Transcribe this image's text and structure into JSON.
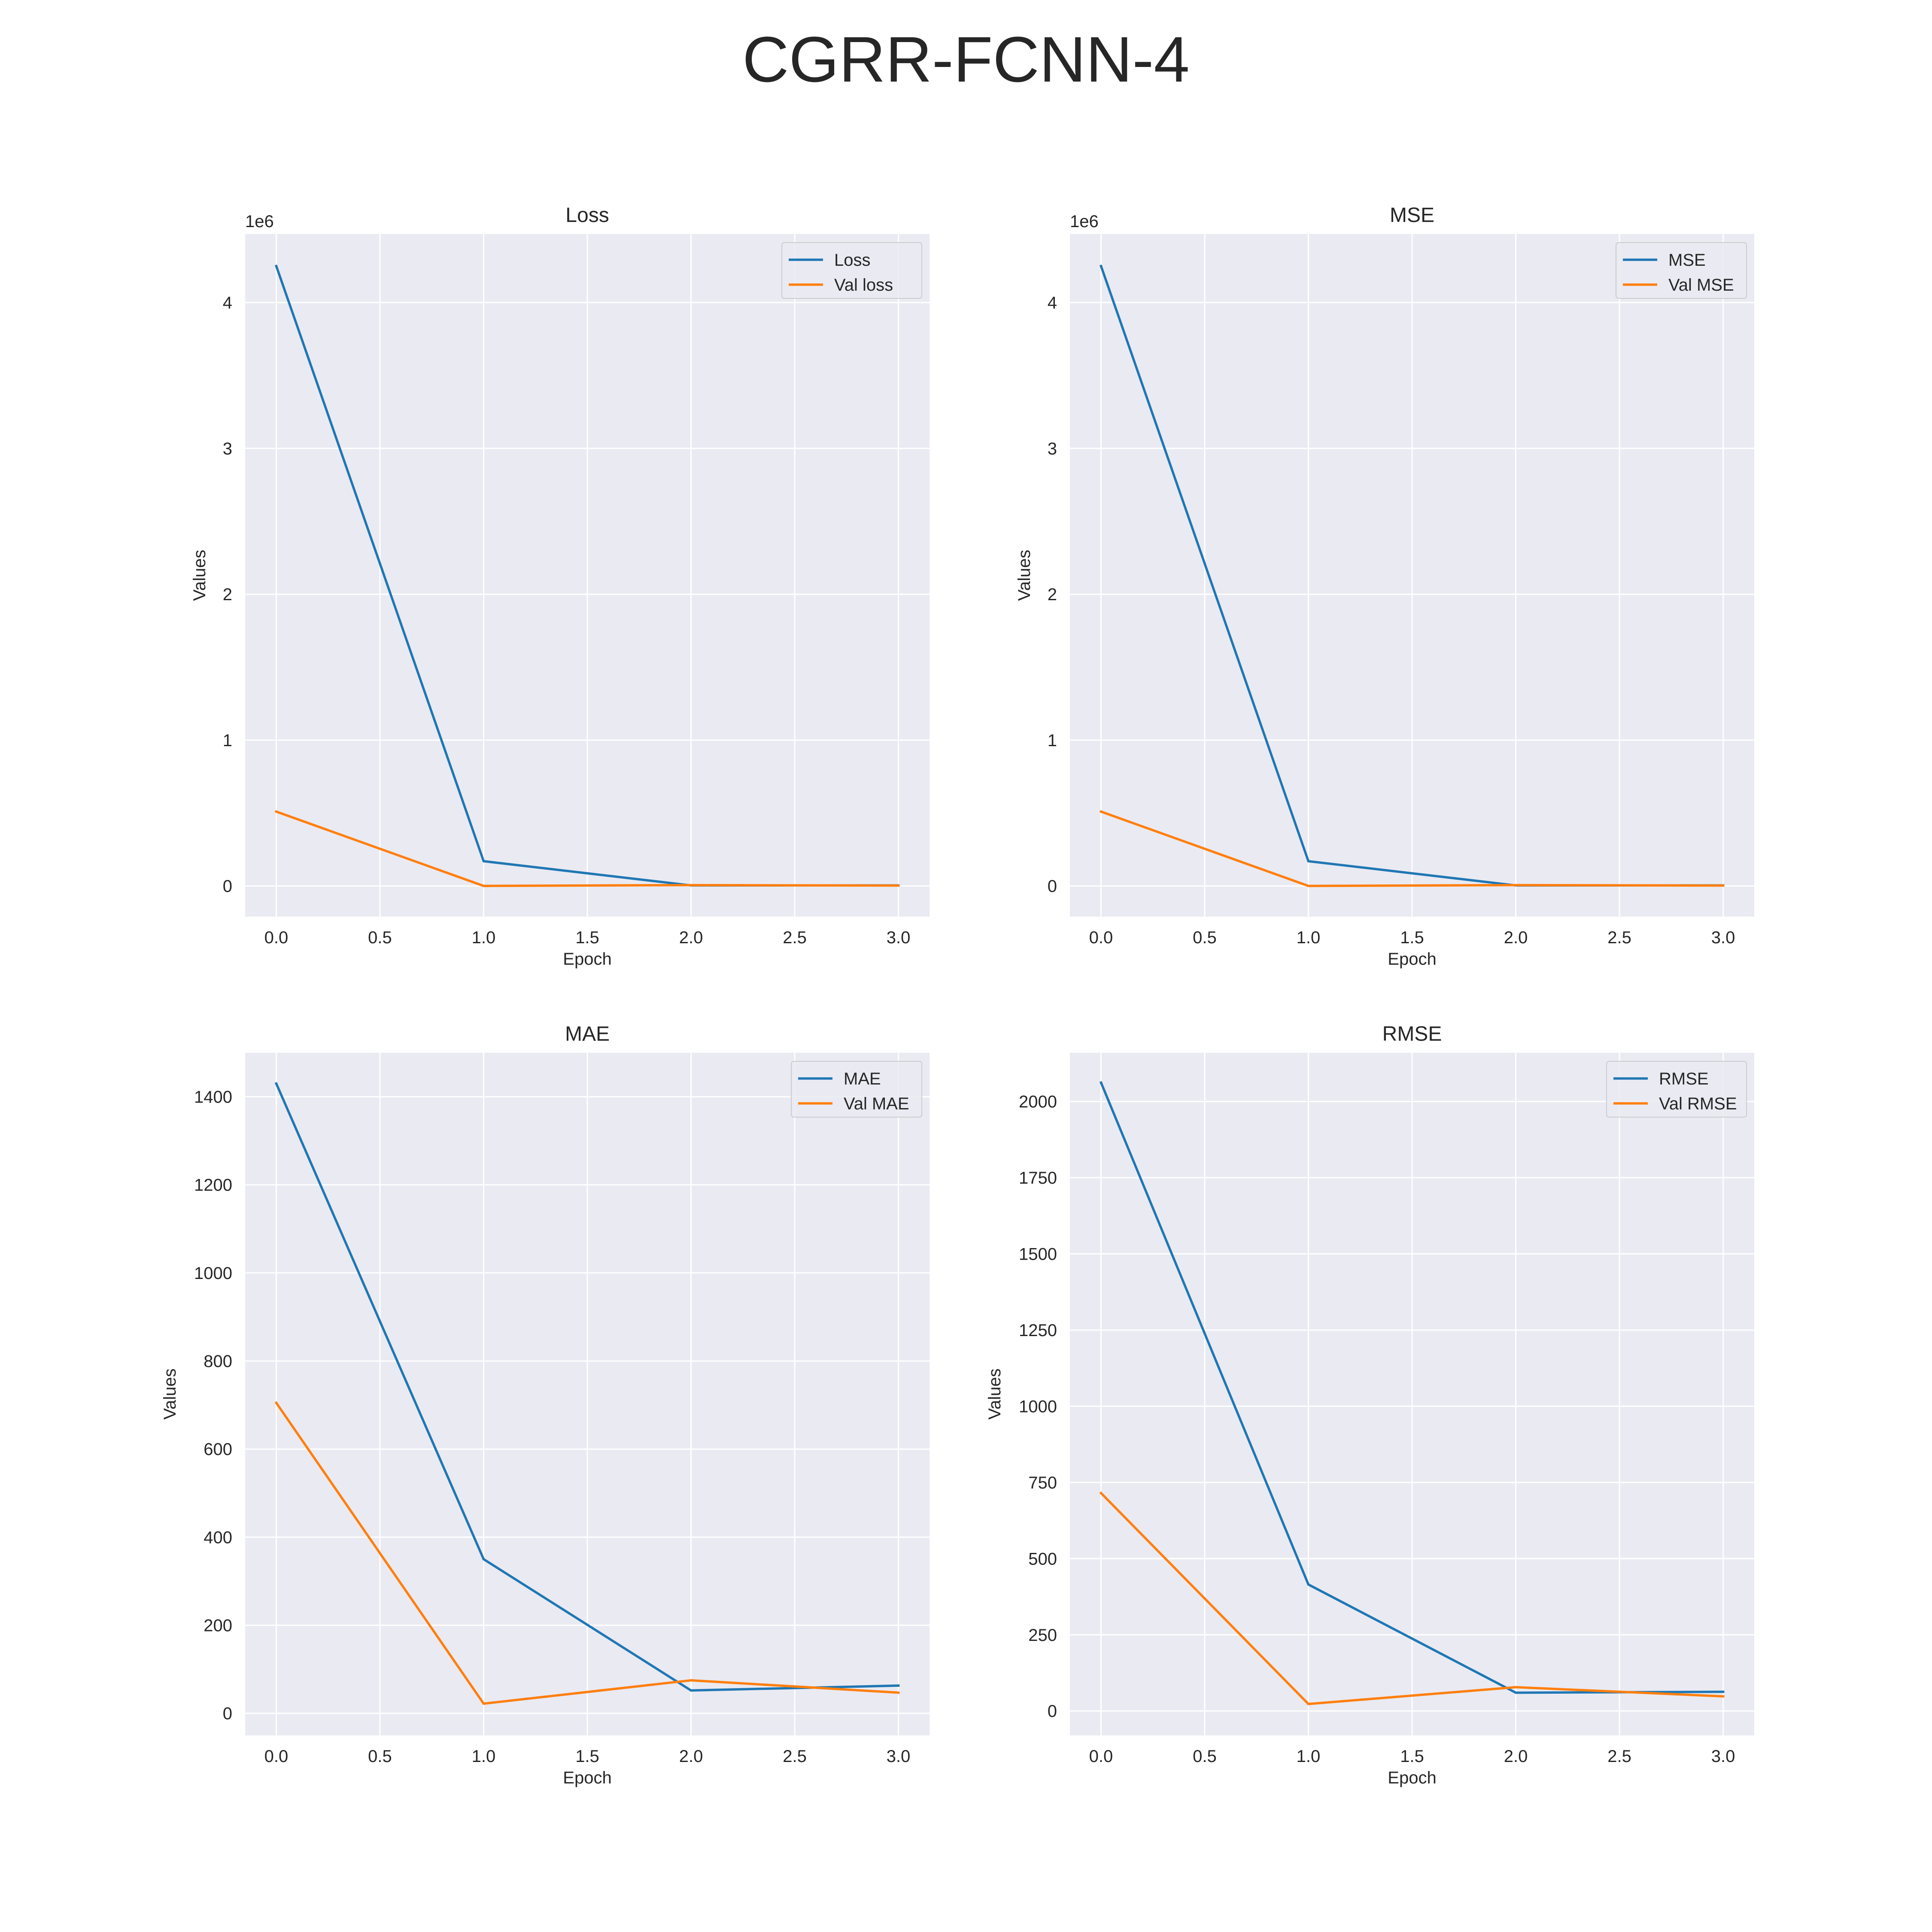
{
  "suptitle": "CGRR-FCNN-4",
  "colors": {
    "train": "#1f77b4",
    "val": "#ff7f0e",
    "axes_bg": "#eaeaf2",
    "grid": "#ffffff",
    "text": "#262626"
  },
  "chart_data": [
    {
      "type": "line",
      "title": "Loss",
      "xlabel": "Epoch",
      "ylabel": "Values",
      "offset_label": "1e6",
      "x": [
        0,
        1,
        2,
        3
      ],
      "xlim": [
        -0.15,
        3.15
      ],
      "ylim": [
        -0.21,
        4.47
      ],
      "xticks": [
        0.0,
        0.5,
        1.0,
        1.5,
        2.0,
        2.5,
        3.0
      ],
      "xtick_labels": [
        "0.0",
        "0.5",
        "1.0",
        "1.5",
        "2.0",
        "2.5",
        "3.0"
      ],
      "yticks": [
        0,
        1,
        2,
        3,
        4
      ],
      "ytick_labels": [
        "0",
        "1",
        "2",
        "3",
        "4"
      ],
      "grid": true,
      "legend": "top-right",
      "series": [
        {
          "name": "Loss",
          "color": "#1f77b4",
          "values": [
            4.25,
            0.17,
            0.004,
            0.004
          ]
        },
        {
          "name": "Val loss",
          "color": "#ff7f0e",
          "values": [
            0.51,
            0.0005,
            0.006,
            0.003
          ]
        }
      ]
    },
    {
      "type": "line",
      "title": "MSE",
      "xlabel": "Epoch",
      "ylabel": "Values",
      "offset_label": "1e6",
      "x": [
        0,
        1,
        2,
        3
      ],
      "xlim": [
        -0.15,
        3.15
      ],
      "ylim": [
        -0.21,
        4.47
      ],
      "xticks": [
        0.0,
        0.5,
        1.0,
        1.5,
        2.0,
        2.5,
        3.0
      ],
      "xtick_labels": [
        "0.0",
        "0.5",
        "1.0",
        "1.5",
        "2.0",
        "2.5",
        "3.0"
      ],
      "yticks": [
        0,
        1,
        2,
        3,
        4
      ],
      "ytick_labels": [
        "0",
        "1",
        "2",
        "3",
        "4"
      ],
      "grid": true,
      "legend": "top-right",
      "series": [
        {
          "name": "MSE",
          "color": "#1f77b4",
          "values": [
            4.25,
            0.17,
            0.004,
            0.004
          ]
        },
        {
          "name": "Val MSE",
          "color": "#ff7f0e",
          "values": [
            0.51,
            0.0005,
            0.006,
            0.003
          ]
        }
      ]
    },
    {
      "type": "line",
      "title": "MAE",
      "xlabel": "Epoch",
      "ylabel": "Values",
      "offset_label": "",
      "x": [
        0,
        1,
        2,
        3
      ],
      "xlim": [
        -0.15,
        3.15
      ],
      "ylim": [
        -50,
        1500
      ],
      "xticks": [
        0.0,
        0.5,
        1.0,
        1.5,
        2.0,
        2.5,
        3.0
      ],
      "xtick_labels": [
        "0.0",
        "0.5",
        "1.0",
        "1.5",
        "2.0",
        "2.5",
        "3.0"
      ],
      "yticks": [
        0,
        200,
        400,
        600,
        800,
        1000,
        1200,
        1400
      ],
      "ytick_labels": [
        "0",
        "200",
        "400",
        "600",
        "800",
        "1000",
        "1200",
        "1400"
      ],
      "grid": true,
      "legend": "top-right",
      "series": [
        {
          "name": "MAE",
          "color": "#1f77b4",
          "values": [
            1430,
            350,
            52,
            63
          ]
        },
        {
          "name": "Val MAE",
          "color": "#ff7f0e",
          "values": [
            705,
            22,
            75,
            47
          ]
        }
      ]
    },
    {
      "type": "line",
      "title": "RMSE",
      "xlabel": "Epoch",
      "ylabel": "Values",
      "offset_label": "",
      "x": [
        0,
        1,
        2,
        3
      ],
      "xlim": [
        -0.15,
        3.15
      ],
      "ylim": [
        -80,
        2160
      ],
      "xticks": [
        0.0,
        0.5,
        1.0,
        1.5,
        2.0,
        2.5,
        3.0
      ],
      "xtick_labels": [
        "0.0",
        "0.5",
        "1.0",
        "1.5",
        "2.0",
        "2.5",
        "3.0"
      ],
      "yticks": [
        0,
        250,
        500,
        750,
        1000,
        1250,
        1500,
        1750,
        2000
      ],
      "ytick_labels": [
        "0",
        "250",
        "500",
        "750",
        "1000",
        "1250",
        "1500",
        "1750",
        "2000"
      ],
      "grid": true,
      "legend": "top-right",
      "series": [
        {
          "name": "RMSE",
          "color": "#1f77b4",
          "values": [
            2062,
            415,
            60,
            63
          ]
        },
        {
          "name": "Val RMSE",
          "color": "#ff7f0e",
          "values": [
            715,
            23,
            78,
            48
          ]
        }
      ]
    }
  ]
}
